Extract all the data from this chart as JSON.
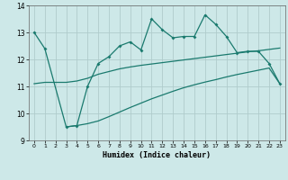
{
  "xlabel": "Humidex (Indice chaleur)",
  "xlim": [
    -0.5,
    23.5
  ],
  "ylim": [
    9,
    14
  ],
  "yticks": [
    9,
    10,
    11,
    12,
    13,
    14
  ],
  "xticks": [
    0,
    1,
    2,
    3,
    4,
    5,
    6,
    7,
    8,
    9,
    10,
    11,
    12,
    13,
    14,
    15,
    16,
    17,
    18,
    19,
    20,
    21,
    22,
    23
  ],
  "bg_color": "#cde8e8",
  "grid_color": "#b0cccc",
  "line_color": "#1a7a6e",
  "line_upper_x": [
    0,
    1,
    3,
    4,
    5,
    6,
    7,
    8,
    9,
    10,
    11,
    12,
    13,
    14,
    15,
    16,
    17,
    18,
    19,
    20,
    21,
    22,
    23
  ],
  "line_upper_y": [
    13.0,
    12.4,
    9.5,
    9.55,
    11.0,
    11.85,
    12.1,
    12.5,
    12.65,
    12.35,
    13.5,
    13.1,
    12.8,
    12.85,
    12.85,
    13.65,
    13.3,
    12.85,
    12.25,
    12.3,
    12.3,
    11.85,
    11.1
  ],
  "line_middle_x": [
    0,
    1,
    3,
    4,
    5,
    6,
    7,
    8,
    9,
    10,
    11,
    12,
    13,
    14,
    15,
    16,
    17,
    18,
    19,
    20,
    21,
    22,
    23
  ],
  "line_middle_y": [
    11.1,
    11.15,
    11.15,
    11.2,
    11.3,
    11.45,
    11.55,
    11.65,
    11.72,
    11.78,
    11.83,
    11.88,
    11.93,
    11.98,
    12.03,
    12.08,
    12.13,
    12.18,
    12.23,
    12.28,
    12.32,
    12.37,
    12.42
  ],
  "line_lower_x": [
    3,
    4,
    5,
    6,
    7,
    8,
    9,
    10,
    11,
    12,
    13,
    14,
    15,
    16,
    17,
    18,
    19,
    20,
    21,
    22,
    23
  ],
  "line_lower_y": [
    9.5,
    9.55,
    9.62,
    9.72,
    9.88,
    10.05,
    10.22,
    10.38,
    10.54,
    10.68,
    10.82,
    10.95,
    11.06,
    11.16,
    11.25,
    11.35,
    11.44,
    11.52,
    11.6,
    11.68,
    11.1
  ]
}
